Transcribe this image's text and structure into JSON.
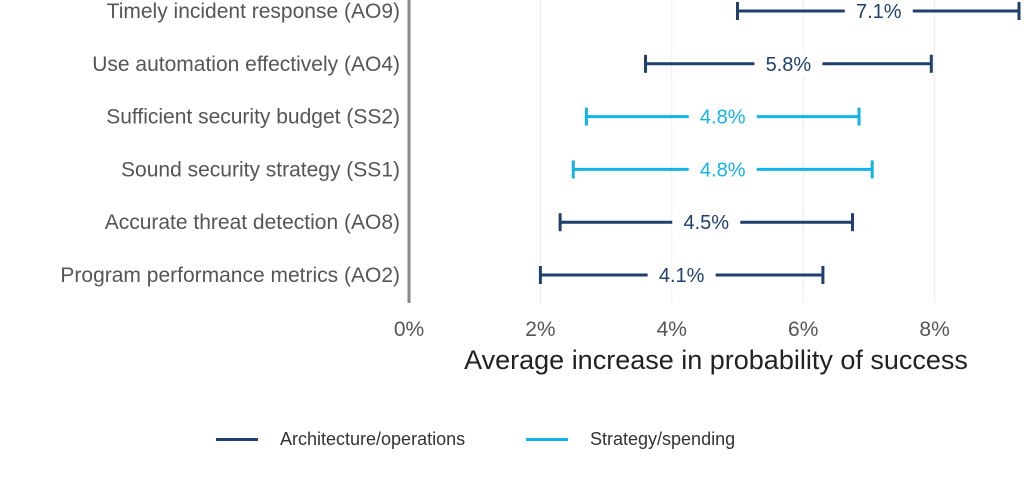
{
  "chart_data": {
    "type": "interval",
    "xlabel": "Average increase in probability of success",
    "xlim": [
      0,
      0.092
    ],
    "xticks": [
      0,
      0.02,
      0.04,
      0.06,
      0.08
    ],
    "xtick_labels": [
      "0%",
      "2%",
      "4%",
      "6%",
      "8%"
    ],
    "grid": "vertical",
    "legend_position": "bottom",
    "series": [
      {
        "name": "Architecture/operations",
        "color": "#1f3f6e"
      },
      {
        "name": "Strategy/spending",
        "color": "#10b4e6"
      }
    ],
    "items": [
      {
        "label": "Timely incident response (AO9)",
        "series": 0,
        "low": 0.05,
        "high": 0.093,
        "value_label": "7.1%"
      },
      {
        "label": "Use automation effectively (AO4)",
        "series": 0,
        "low": 0.036,
        "high": 0.0795,
        "value_label": "5.8%"
      },
      {
        "label": "Sufficient security budget (SS2)",
        "series": 1,
        "low": 0.027,
        "high": 0.0685,
        "value_label": "4.8%"
      },
      {
        "label": "Sound security strategy (SS1)",
        "series": 1,
        "low": 0.025,
        "high": 0.0705,
        "value_label": "4.8%"
      },
      {
        "label": "Accurate threat detection (AO8)",
        "series": 0,
        "low": 0.023,
        "high": 0.0675,
        "value_label": "4.5%"
      },
      {
        "label": "Program performance metrics (AO2)",
        "series": 0,
        "low": 0.02,
        "high": 0.063,
        "value_label": "4.1%"
      }
    ]
  }
}
